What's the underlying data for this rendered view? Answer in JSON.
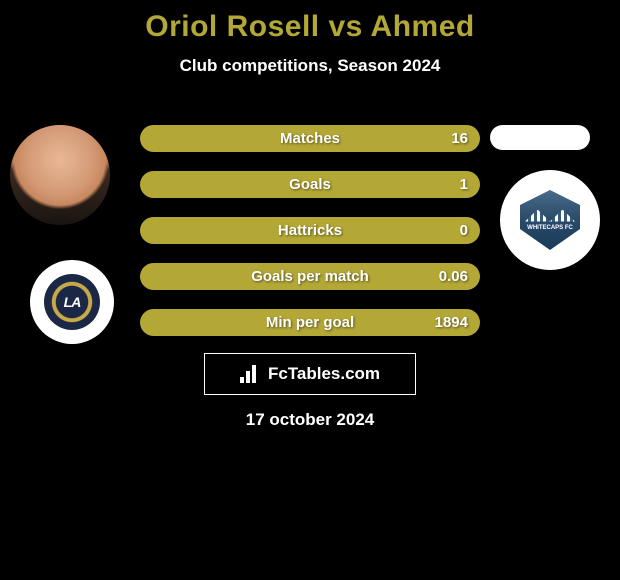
{
  "title_color": "#b3a736",
  "title_text": "Oriol Rosell vs Ahmed",
  "subtitle": "Club competitions, Season 2024",
  "date": "17 october 2024",
  "brand": "FcTables.com",
  "stat_bar_color": "#b3a736",
  "stats": [
    {
      "label": "Matches",
      "value": "16"
    },
    {
      "label": "Goals",
      "value": "1"
    },
    {
      "label": "Hattricks",
      "value": "0"
    },
    {
      "label": "Goals per match",
      "value": "0.06"
    },
    {
      "label": "Min per goal",
      "value": "1894"
    }
  ],
  "player_left": {
    "name": "Oriol Rosell"
  },
  "player_right": {
    "name": "Ahmed"
  },
  "team_left": {
    "name": "LA Galaxy",
    "abbrev": "LA",
    "badge_bg": "#1a2845",
    "badge_ring": "#c9a84a"
  },
  "team_right": {
    "name": "Vancouver Whitecaps FC",
    "abbrev": "WHITECAPS FC",
    "badge_bg": "#2a4a6a"
  }
}
